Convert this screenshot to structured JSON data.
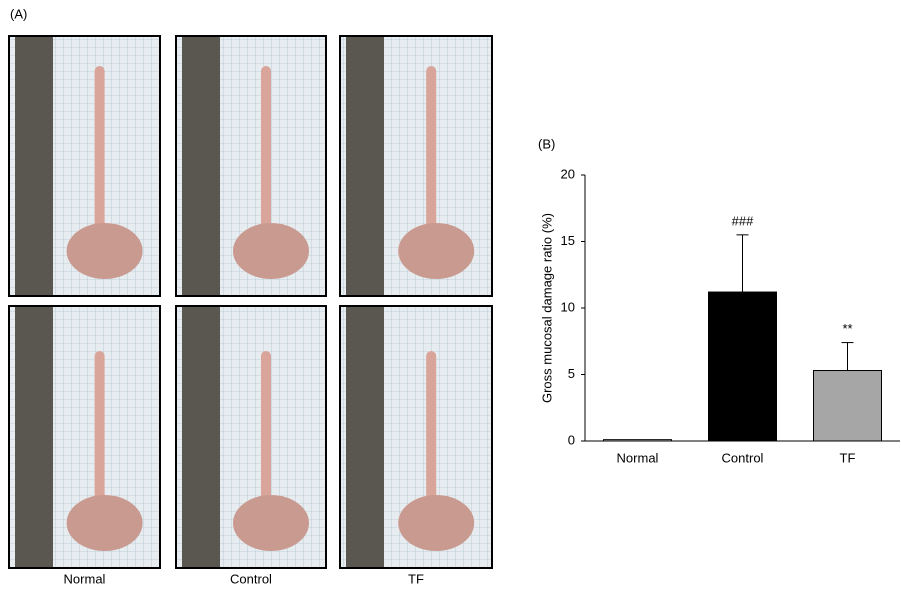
{
  "panel_a": {
    "label": "(A)",
    "captions": [
      "Normal",
      "Control",
      "TF"
    ]
  },
  "chart_data": {
    "type": "bar",
    "label": "(B)",
    "ylabel": "Gross mucosal damage ratio (%)",
    "categories": [
      "Normal",
      "Control",
      "TF"
    ],
    "values": [
      0.1,
      11.2,
      5.3
    ],
    "errors": [
      0,
      4.3,
      2.1
    ],
    "colors": [
      "#ffffff",
      "#000000",
      "#a6a6a6"
    ],
    "annotations": [
      null,
      "###",
      "**"
    ],
    "ylim": [
      0,
      20
    ],
    "yticks": [
      0,
      5,
      10,
      15,
      20
    ],
    "grid": false
  }
}
